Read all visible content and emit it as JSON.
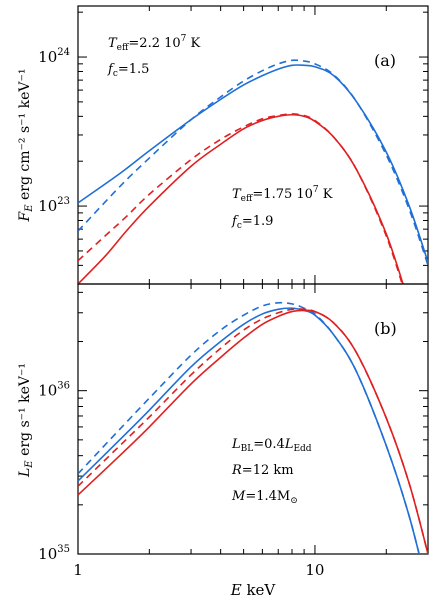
{
  "chart_data": [
    {
      "id": "panel_a",
      "type": "line",
      "panel_tag": "(a)",
      "ylabel_var": "F",
      "ylabel_sub": "E",
      "ylabel_units": "erg cm⁻² s⁻¹ keV⁻¹",
      "xscale": "log",
      "yscale": "log",
      "xlim": [
        1,
        30
      ],
      "ylim": [
        3e+22,
        2.2e+24
      ],
      "yticks": [
        {
          "value": 1e+23,
          "label": "10",
          "exp": "23"
        },
        {
          "value": 1e+24,
          "label": "10",
          "exp": "24"
        }
      ],
      "annotations": [
        {
          "lines": [
            "T_eff=2.2 10^7 K",
            "f_c=1.5"
          ],
          "teff": "=2.2  10",
          "teff_exp": "7",
          "teff_unit": " K",
          "fc": "=1.5"
        },
        {
          "lines": [
            "T_eff=1.75 10^7 K",
            "f_c=1.9"
          ],
          "teff": "=1.75  10",
          "teff_exp": "7",
          "teff_unit": " K",
          "fc": "=1.9"
        }
      ],
      "series": [
        {
          "color": "#1f6fd6",
          "dash": false,
          "x": [
            1,
            1.5,
            2,
            3,
            4,
            5,
            6,
            7,
            8,
            9,
            10,
            12,
            15,
            20,
            25,
            30
          ],
          "y": [
            1.05e+23,
            1.65e+23,
            2.35e+23,
            3.8e+23,
            5.2e+23,
            6.5e+23,
            7.5e+23,
            8.3e+23,
            8.8e+23,
            8.8e+23,
            8.6e+23,
            7.5e+23,
            5e+23,
            2.3e+23,
            1e+23,
            4.2e+22
          ]
        },
        {
          "color": "#1f6fd6",
          "dash": true,
          "x": [
            1,
            1.5,
            2,
            3,
            4,
            5,
            6,
            7,
            8,
            9,
            10,
            12,
            15,
            20,
            25,
            30
          ],
          "y": [
            6.8e+22,
            1.35e+23,
            2.1e+23,
            3.8e+23,
            5.4e+23,
            6.9e+23,
            8.1e+23,
            9e+23,
            9.5e+23,
            9.4e+23,
            9e+23,
            7.6e+23,
            5e+23,
            2.2e+23,
            9.5e+22,
            4e+22
          ]
        },
        {
          "color": "#e02020",
          "dash": false,
          "x": [
            1,
            1.3,
            1.6,
            2,
            3,
            4,
            5,
            6,
            7,
            8,
            9,
            10,
            12,
            15,
            20,
            25
          ],
          "y": [
            3e+22,
            4.6e+22,
            6.8e+22,
            1e+23,
            1.85e+23,
            2.6e+23,
            3.3e+23,
            3.75e+23,
            4e+23,
            4.1e+23,
            4e+23,
            3.7e+23,
            2.9e+23,
            1.75e+23,
            6.5e+22,
            2.2e+22
          ]
        },
        {
          "color": "#e02020",
          "dash": true,
          "x": [
            1,
            1.3,
            1.6,
            2,
            3,
            4,
            5,
            6,
            7,
            8,
            9,
            10,
            12,
            15,
            20,
            25
          ],
          "y": [
            4.3e+22,
            6.3e+22,
            8.5e+22,
            1.2e+23,
            2.05e+23,
            2.8e+23,
            3.4e+23,
            3.85e+23,
            4.05e+23,
            4.15e+23,
            4.05e+23,
            3.75e+23,
            2.9e+23,
            1.75e+23,
            6.3e+22,
            2.1e+22
          ]
        }
      ]
    },
    {
      "id": "panel_b",
      "type": "line",
      "panel_tag": "(b)",
      "xlabel_var": "E",
      "xlabel_unit": "keV",
      "ylabel_var": "L",
      "ylabel_sub": "E",
      "ylabel_units": "erg s⁻¹ keV⁻¹",
      "xscale": "log",
      "yscale": "log",
      "xlim": [
        1,
        30
      ],
      "ylim": [
        1e+35,
        4.5e+36
      ],
      "xticks": [
        {
          "value": 1,
          "label": "1"
        },
        {
          "value": 10,
          "label": "10"
        }
      ],
      "yticks": [
        {
          "value": 1e+35,
          "label": "10",
          "exp": "35"
        },
        {
          "value": 1e+36,
          "label": "10",
          "exp": "36"
        }
      ],
      "annotations": [
        {
          "text": "L_BL=0.4L_Edd",
          "main1": "L",
          "sub1": "BL",
          "eq": "=0.4",
          "main2": "L",
          "sub2": "Edd"
        },
        {
          "text": "R=12 km",
          "var": "R",
          "rest": "=12  km"
        },
        {
          "text": "M=1.4M_sun",
          "var": "M",
          "rest": "=1.4M",
          "sun": "⊙"
        }
      ],
      "series": [
        {
          "color": "#1f6fd6",
          "dash": false,
          "x": [
            1,
            1.5,
            2,
            3,
            4,
            5,
            6,
            7,
            8,
            9,
            10,
            12,
            15,
            20,
            25,
            30
          ],
          "y": [
            2.8e+35,
            5e+35,
            7.6e+35,
            1.4e+36,
            2e+36,
            2.55e+36,
            2.95e+36,
            3.15e+36,
            3.2e+36,
            3.1e+36,
            2.9e+36,
            2.2e+36,
            1.3e+36,
            4.6e+35,
            1.7e+35,
            6e+34
          ]
        },
        {
          "color": "#1f6fd6",
          "dash": true,
          "x": [
            1,
            1.5,
            2,
            3,
            4,
            5,
            6,
            7,
            8,
            9,
            10,
            12,
            15,
            20,
            25,
            30
          ],
          "y": [
            3.1e+35,
            5.8e+35,
            9e+35,
            1.65e+36,
            2.35e+36,
            2.9e+36,
            3.3e+36,
            3.45e+36,
            3.4e+36,
            3.2e+36,
            2.95e+36,
            2.2e+36,
            1.3e+36,
            4.6e+35,
            1.7e+35,
            6e+34
          ]
        },
        {
          "color": "#e02020",
          "dash": false,
          "x": [
            1,
            1.5,
            2,
            3,
            4,
            5,
            6,
            7,
            8,
            9,
            10,
            12,
            15,
            20,
            25,
            30
          ],
          "y": [
            2.3e+35,
            4e+35,
            6e+35,
            1.1e+36,
            1.6e+36,
            2.1e+36,
            2.55e+36,
            2.85e+36,
            3.05e+36,
            3.1e+36,
            3.05e+36,
            2.6e+36,
            1.7e+36,
            6.8e+35,
            2.7e+35,
            1e+35
          ]
        },
        {
          "color": "#e02020",
          "dash": true,
          "x": [
            1,
            1.5,
            2,
            3,
            4,
            5,
            6,
            7,
            8,
            9,
            10,
            12,
            15,
            20,
            25,
            30
          ],
          "y": [
            2.6e+35,
            4.6e+35,
            6.9e+35,
            1.25e+36,
            1.82e+36,
            2.35e+36,
            2.75e+36,
            3e+36,
            3.15e+36,
            3.15e+36,
            3.05e+36,
            2.6e+36,
            1.7e+36,
            6.8e+35,
            2.7e+35,
            1e+35
          ]
        }
      ]
    }
  ]
}
